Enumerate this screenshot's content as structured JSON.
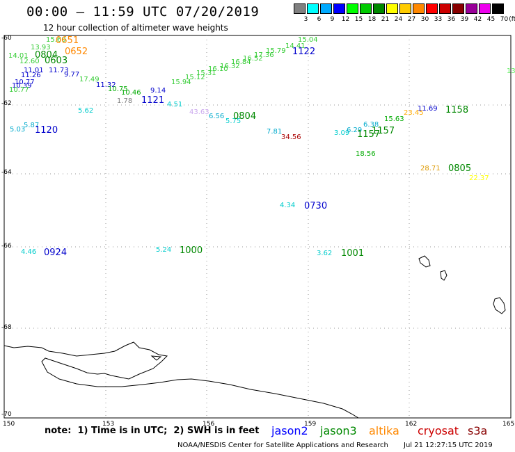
{
  "title": "00:00 – 11:59 UTC 07/20/2019",
  "subtitle": "12 hour collection of altimeter wave heights",
  "legend": {
    "unit": "(ft)",
    "bins": [
      {
        "label": "3",
        "color": "#808080"
      },
      {
        "label": "6",
        "color": "#00ffff"
      },
      {
        "label": "9",
        "color": "#00aaff"
      },
      {
        "label": "12",
        "color": "#0000ff"
      },
      {
        "label": "15",
        "color": "#00ff00"
      },
      {
        "label": "18",
        "color": "#00cc00"
      },
      {
        "label": "21",
        "color": "#008800"
      },
      {
        "label": "24",
        "color": "#ffff00"
      },
      {
        "label": "27",
        "color": "#ffcc00"
      },
      {
        "label": "30",
        "color": "#ff8800"
      },
      {
        "label": "33",
        "color": "#ff0000"
      },
      {
        "label": "36",
        "color": "#cc0000"
      },
      {
        "label": "39",
        "color": "#880000"
      },
      {
        "label": "42",
        "color": "#990099"
      },
      {
        "label": "45",
        "color": "#ee00ee"
      },
      {
        "label": "70",
        "color": "#000000"
      }
    ]
  },
  "axes": {
    "lat_labels": [
      "-60",
      "-62",
      "-64",
      "-66",
      "-68",
      "-70"
    ],
    "lon_labels": [
      "150",
      "153",
      "156",
      "159",
      "162",
      "165"
    ]
  },
  "points": [
    {
      "text": "15.60",
      "color": "#33cc33"
    },
    {
      "text": "14.01",
      "color": "#33cc33"
    },
    {
      "text": "13.93",
      "color": "#33cc33"
    },
    {
      "text": "12.60",
      "color": "#33cc33"
    },
    {
      "text": "11.01",
      "color": "#0000cc"
    },
    {
      "text": "11.73",
      "color": "#0000cc"
    },
    {
      "text": "11.26",
      "color": "#0000cc"
    },
    {
      "text": "10.77",
      "color": "#0000cc"
    },
    {
      "text": "10.39",
      "color": "#0000cc"
    },
    {
      "text": "10.77",
      "color": "#33cc33"
    },
    {
      "text": "9.77",
      "color": "#0000cc"
    },
    {
      "text": "17.49",
      "color": "#33cc33"
    },
    {
      "text": "11.32",
      "color": "#0000cc"
    },
    {
      "text": "10.75",
      "color": "#00aa00"
    },
    {
      "text": "10.46",
      "color": "#00aa00"
    },
    {
      "text": "9.14",
      "color": "#0000cc"
    },
    {
      "text": "1.78",
      "color": "#808080"
    },
    {
      "text": "15.94",
      "color": "#33cc33"
    },
    {
      "text": "15.12",
      "color": "#33cc33"
    },
    {
      "text": "15.31",
      "color": "#33cc33"
    },
    {
      "text": "16.10",
      "color": "#33cc33"
    },
    {
      "text": "16.32",
      "color": "#33cc33"
    },
    {
      "text": "16.84",
      "color": "#33cc33"
    },
    {
      "text": "16.52",
      "color": "#33cc33"
    },
    {
      "text": "17.36",
      "color": "#33cc33"
    },
    {
      "text": "15.79",
      "color": "#33cc33"
    },
    {
      "text": "14.41",
      "color": "#33cc33"
    },
    {
      "text": "15.04",
      "color": "#33cc33"
    },
    {
      "text": "5.62",
      "color": "#00cccc"
    },
    {
      "text": "4.51",
      "color": "#00cccc"
    },
    {
      "text": "43.63",
      "color": "#ccaaee"
    },
    {
      "text": "6.56",
      "color": "#00aacc"
    },
    {
      "text": "5.75",
      "color": "#00cccc"
    },
    {
      "text": "5.87",
      "color": "#00aacc"
    },
    {
      "text": "5.03",
      "color": "#00aacc"
    },
    {
      "text": "7.81",
      "color": "#00aacc"
    },
    {
      "text": "34.56",
      "color": "#aa0000"
    },
    {
      "text": "3.09",
      "color": "#00cccc"
    },
    {
      "text": "6.29",
      "color": "#00aacc"
    },
    {
      "text": "6.38",
      "color": "#00aacc"
    },
    {
      "text": "18.56",
      "color": "#00aa00"
    },
    {
      "text": "15.63",
      "color": "#00aa00"
    },
    {
      "text": "23.45",
      "color": "#ffaa00"
    },
    {
      "text": "11.69",
      "color": "#0000cc"
    },
    {
      "text": "28.71",
      "color": "#dd9900"
    },
    {
      "text": "22.37",
      "color": "#ffff00"
    },
    {
      "text": "4.34",
      "color": "#00cccc"
    },
    {
      "text": "4.46",
      "color": "#00cccc"
    },
    {
      "text": "5.24",
      "color": "#00cccc"
    },
    {
      "text": "3.62",
      "color": "#00cccc"
    },
    {
      "text": "13",
      "color": "#66ee66"
    }
  ],
  "times": [
    {
      "text": "0651",
      "color": "#ff8800"
    },
    {
      "text": "0652",
      "color": "#ff8800"
    },
    {
      "text": "0804",
      "color": "#008800"
    },
    {
      "text": "0603",
      "color": "#008800"
    },
    {
      "text": "1122",
      "color": "#0000cc"
    },
    {
      "text": "1121",
      "color": "#0000cc"
    },
    {
      "text": "1120",
      "color": "#0000cc"
    },
    {
      "text": "0804",
      "color": "#008800"
    },
    {
      "text": "1157",
      "color": "#008800"
    },
    {
      "text": "1157",
      "color": "#008800"
    },
    {
      "text": "1158",
      "color": "#008800"
    },
    {
      "text": "0805",
      "color": "#008800"
    },
    {
      "text": "0730",
      "color": "#0000cc"
    },
    {
      "text": "0924",
      "color": "#0000cc"
    },
    {
      "text": "1000",
      "color": "#008800"
    },
    {
      "text": "1001",
      "color": "#008800"
    }
  ],
  "note": "note:  1) Time is in UTC;  2) SWH is in feet",
  "satellites": [
    {
      "name": "jason2",
      "color": "#0000ff"
    },
    {
      "name": "jason3",
      "color": "#008800"
    },
    {
      "name": "altika",
      "color": "#ff8800"
    },
    {
      "name": "cryosat",
      "color": "#cc0000"
    },
    {
      "name": "s3a",
      "color": "#880000"
    }
  ],
  "credit": "NOAA/NESDIS Center for Satellite Applications and Research",
  "timestamp": "Jul 21 12:27:15 UTC 2019"
}
